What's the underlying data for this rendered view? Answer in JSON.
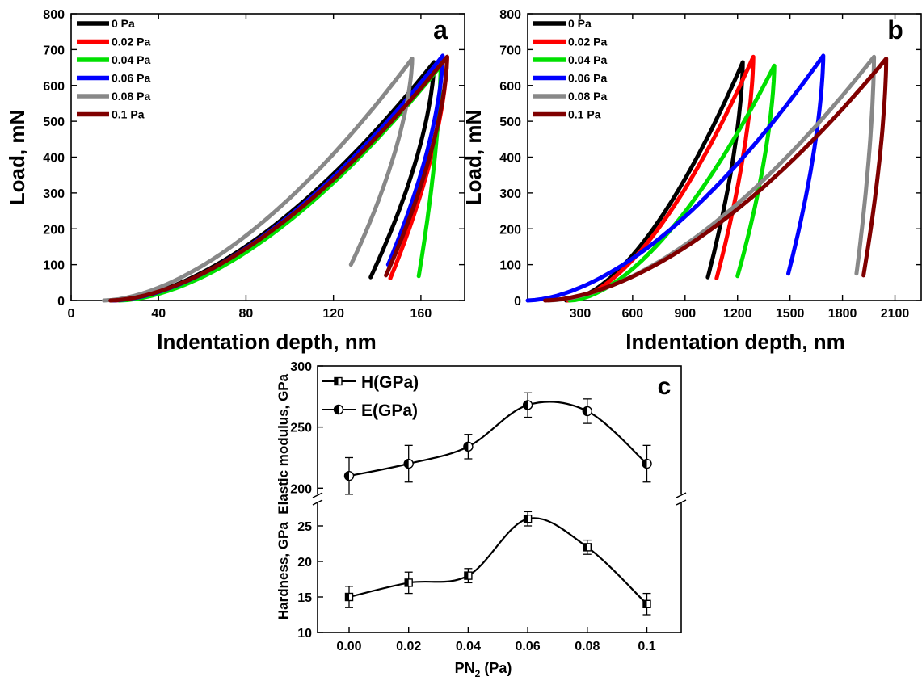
{
  "chart_data": [
    {
      "panel": "a",
      "type": "line",
      "xlabel": "Indentation depth, nm",
      "ylabel": "Load, mN",
      "xlim": [
        0,
        180
      ],
      "ylim": [
        0,
        800
      ],
      "xticks": [
        0,
        40,
        80,
        120,
        160
      ],
      "yticks": [
        0,
        100,
        200,
        300,
        400,
        500,
        600,
        700,
        800
      ],
      "xtick_labels": [
        "0",
        "40",
        "80",
        "120",
        "160"
      ],
      "ytick_labels": [
        "0",
        "100",
        "200",
        "300",
        "400",
        "500",
        "600",
        "700",
        "800"
      ],
      "legend_position": "top-left",
      "series": [
        {
          "name": "0 Pa",
          "color": "#000000",
          "start": 18,
          "max_depth": 166,
          "max_load": 665,
          "unload_end": 137,
          "unload_load": 65
        },
        {
          "name": "0.02 Pa",
          "color": "#ff0000",
          "start": 20,
          "max_depth": 172,
          "max_load": 680,
          "unload_end": 146,
          "unload_load": 62
        },
        {
          "name": "0.04 Pa",
          "color": "#00e000",
          "start": 22,
          "max_depth": 169,
          "max_load": 655,
          "unload_end": 159,
          "unload_load": 68
        },
        {
          "name": "0.06 Pa",
          "color": "#0000ff",
          "start": 19,
          "max_depth": 170,
          "max_load": 683,
          "unload_end": 145,
          "unload_load": 100
        },
        {
          "name": "0.08 Pa",
          "color": "#888888",
          "start": 15,
          "max_depth": 156,
          "max_load": 675,
          "unload_end": 128,
          "unload_load": 100
        },
        {
          "name": "0.1 Pa",
          "color": "#800000",
          "start": 18,
          "max_depth": 172,
          "max_load": 680,
          "unload_end": 144,
          "unload_load": 70
        }
      ]
    },
    {
      "panel": "b",
      "type": "line",
      "xlabel": "Indentation depth, nm",
      "ylabel": "Load, mN",
      "xlim": [
        0,
        2250
      ],
      "ylim": [
        0,
        800
      ],
      "xticks": [
        300,
        600,
        900,
        1200,
        1500,
        1800,
        2100
      ],
      "yticks": [
        0,
        100,
        200,
        300,
        400,
        500,
        600,
        700,
        800
      ],
      "xtick_labels": [
        "300",
        "600",
        "900",
        "1200",
        "1500",
        "1800",
        "2100"
      ],
      "ytick_labels": [
        "0",
        "100",
        "200",
        "300",
        "400",
        "500",
        "600",
        "700",
        "800"
      ],
      "legend_position": "top-left",
      "series": [
        {
          "name": "0 Pa",
          "color": "#000000",
          "start": 220,
          "max_depth": 1230,
          "max_load": 665,
          "unload_end": 1030,
          "unload_load": 65
        },
        {
          "name": "0.02 Pa",
          "color": "#ff0000",
          "start": 230,
          "max_depth": 1290,
          "max_load": 680,
          "unload_end": 1080,
          "unload_load": 62
        },
        {
          "name": "0.04 Pa",
          "color": "#00e000",
          "start": 240,
          "max_depth": 1410,
          "max_load": 655,
          "unload_end": 1200,
          "unload_load": 68
        },
        {
          "name": "0.06 Pa",
          "color": "#0000ff",
          "start": 0,
          "max_depth": 1690,
          "max_load": 683,
          "unload_end": 1490,
          "unload_load": 75
        },
        {
          "name": "0.08 Pa",
          "color": "#888888",
          "start": 120,
          "max_depth": 1980,
          "max_load": 680,
          "unload_end": 1880,
          "unload_load": 75
        },
        {
          "name": "0.1 Pa",
          "color": "#800000",
          "start": 100,
          "max_depth": 2050,
          "max_load": 675,
          "unload_end": 1920,
          "unload_load": 70
        }
      ]
    },
    {
      "panel": "c",
      "type": "line",
      "xlabel_main": "PN",
      "xlabel_sub": "2",
      "xlabel_tail": " (Pa)",
      "ylabel": "Hardness, GPa  Elastic modulus, GPa",
      "categories": [
        "0.00",
        "0.02",
        "0.04",
        "0.06",
        "0.08",
        "0.1"
      ],
      "legend_position": "top-left",
      "series": [
        {
          "name": "H(GPa)",
          "marker": "half-filled-square",
          "values": [
            15,
            17,
            18,
            26,
            22,
            14
          ],
          "errors": [
            1.5,
            1.5,
            1,
            1,
            1,
            1.5
          ],
          "axis_range": [
            10,
            30
          ]
        },
        {
          "name": "E(GPa)",
          "marker": "half-filled-circle",
          "values": [
            210,
            220,
            234,
            268,
            263,
            220
          ],
          "errors": [
            15,
            15,
            10,
            10,
            10,
            15
          ],
          "axis_range": [
            185,
            300
          ]
        }
      ],
      "upper_yticks": [
        "200",
        "250",
        "300"
      ],
      "lower_yticks": [
        "10",
        "15",
        "20",
        "25"
      ]
    }
  ]
}
